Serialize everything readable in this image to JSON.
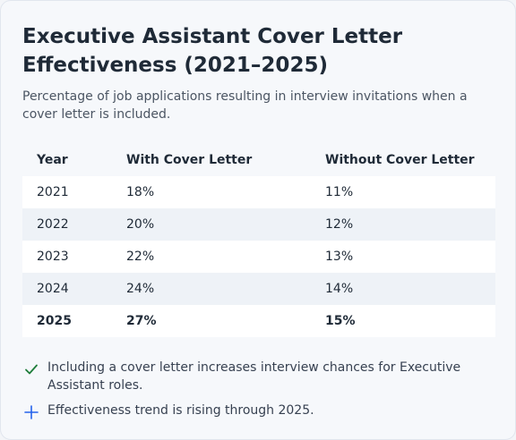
{
  "title": "Executive Assistant Cover Letter Effectiveness (2021–2025)",
  "subtitle": "Percentage of job applications resulting in interview invitations when a cover letter is included.",
  "chart_data": {
    "type": "table",
    "columns": [
      "Year",
      "With Cover Letter",
      "Without Cover Letter"
    ],
    "rows": [
      {
        "year": "2021",
        "with": "18%",
        "without": "11%"
      },
      {
        "year": "2022",
        "with": "20%",
        "without": "12%"
      },
      {
        "year": "2023",
        "with": "22%",
        "without": "13%"
      },
      {
        "year": "2024",
        "with": "24%",
        "without": "14%"
      },
      {
        "year": "2025",
        "with": "27%",
        "without": "15%"
      }
    ],
    "highlight_row": "2025",
    "colors": {
      "positive": "#1e7d3a",
      "negative": "#a61b1b",
      "accent": "#2563eb"
    }
  },
  "notes": [
    {
      "icon": "check-icon",
      "text": "Including a cover letter increases interview chances for Executive Assistant roles."
    },
    {
      "icon": "plus-icon",
      "text": "Effectiveness trend is rising through 2025."
    }
  ]
}
